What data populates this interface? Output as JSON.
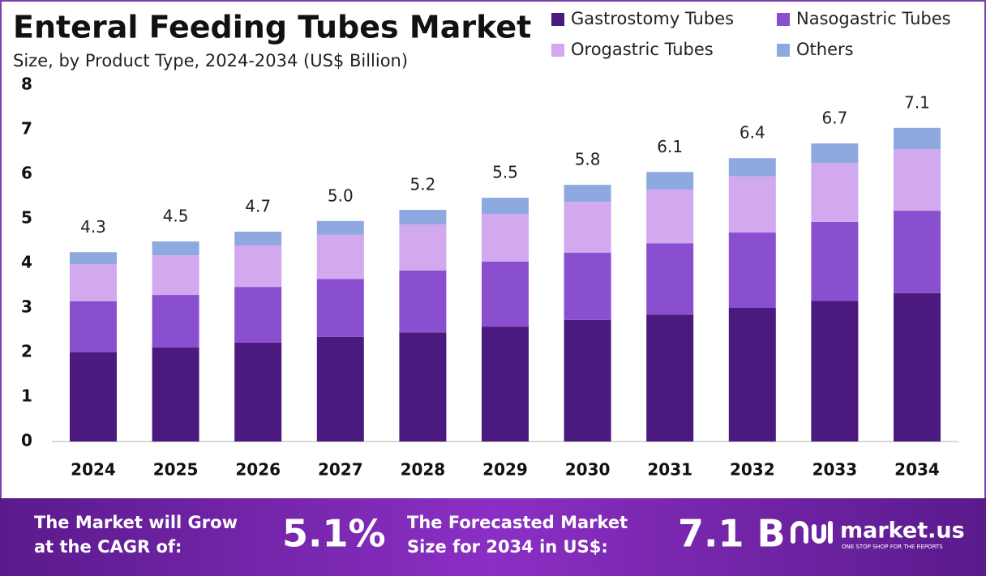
{
  "chart_data": {
    "type": "stacked-bar",
    "title": "Enteral Feeding Tubes Market",
    "subtitle": "Size, by Product Type, 2024-2034 (US$ Billion)",
    "categories": [
      "2024",
      "2025",
      "2026",
      "2027",
      "2028",
      "2029",
      "2030",
      "2031",
      "2032",
      "2033",
      "2034"
    ],
    "series": [
      {
        "name": "Gastrostomy Tubes",
        "color": "#4b1a7e",
        "values": [
          2.0,
          2.11,
          2.22,
          2.35,
          2.45,
          2.58,
          2.73,
          2.85,
          3.0,
          3.16,
          3.33
        ]
      },
      {
        "name": "Nasogastric Tubes",
        "color": "#8a4fcf",
        "values": [
          1.15,
          1.18,
          1.25,
          1.3,
          1.39,
          1.46,
          1.51,
          1.6,
          1.69,
          1.77,
          1.85
        ]
      },
      {
        "name": "Orogastric Tubes",
        "color": "#d2a8ee",
        "values": [
          0.83,
          0.89,
          0.93,
          0.99,
          1.03,
          1.07,
          1.14,
          1.2,
          1.26,
          1.32,
          1.38
        ]
      },
      {
        "name": "Others",
        "color": "#8ea9e0",
        "values": [
          0.27,
          0.31,
          0.31,
          0.31,
          0.33,
          0.36,
          0.38,
          0.4,
          0.41,
          0.44,
          0.48
        ]
      }
    ],
    "totals": [
      4.3,
      4.5,
      4.7,
      5.0,
      5.2,
      5.5,
      5.8,
      6.1,
      6.4,
      6.7,
      7.1
    ],
    "totals_labels": [
      "4.3",
      "4.5",
      "4.7",
      "5.0",
      "5.2",
      "5.5",
      "5.8",
      "6.1",
      "6.4",
      "6.7",
      "7.1"
    ],
    "ylim": [
      0,
      8
    ],
    "yticks": [
      0,
      1,
      2,
      3,
      4,
      5,
      6,
      7,
      8
    ],
    "grid": false
  },
  "footer": {
    "cagr_text": [
      "The Market will Grow",
      "at the CAGR of:"
    ],
    "cagr_value": "5.1%",
    "forecast_text": [
      "The Forecasted Market",
      "Size for 2034 in US$:"
    ],
    "forecast_value": "7.1 B",
    "brand": "market.us",
    "tagline": "ONE STOP SHOP FOR THE REPORTS"
  }
}
